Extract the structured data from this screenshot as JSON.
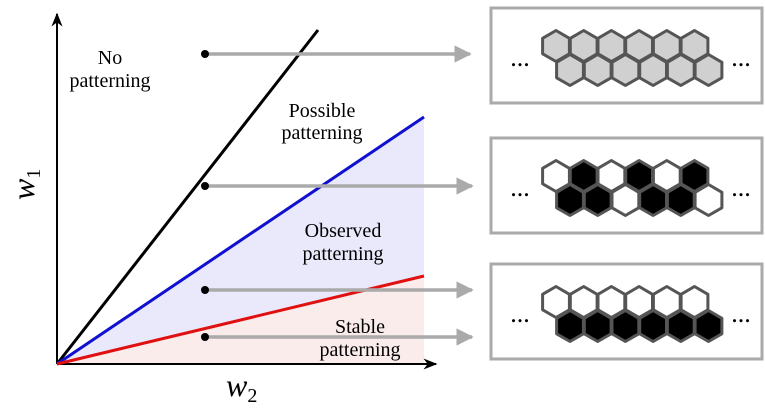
{
  "axes": {
    "y_label": {
      "symbol": "w",
      "subscript": "1"
    },
    "x_label": {
      "symbol": "w",
      "subscript": "2"
    }
  },
  "regions": [
    {
      "lines": [
        "No",
        "patterning"
      ]
    },
    {
      "lines": [
        "Possible",
        "patterning"
      ]
    },
    {
      "lines": [
        "Observed",
        "patterning"
      ]
    },
    {
      "lines": [
        "Stable",
        "patterning"
      ]
    }
  ],
  "panels": [
    {
      "left": "...",
      "right": "..."
    },
    {
      "left": "...",
      "right": "..."
    },
    {
      "left": "...",
      "right": "..."
    }
  ]
}
